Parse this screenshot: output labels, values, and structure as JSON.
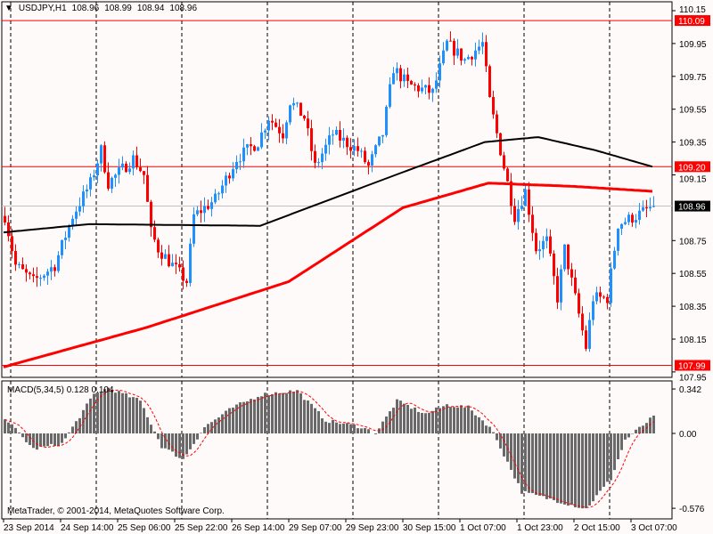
{
  "header": {
    "symbol": "USDJPY,H1",
    "open": "108.96",
    "high": "108.99",
    "low": "108.94",
    "close": "108.96"
  },
  "macd": {
    "label": "MACD(5,34,5)",
    "main": "0.128",
    "signal": "0.104",
    "scale": [
      "0.342",
      "0.00",
      "-0.576"
    ],
    "hist_keypoints": [
      [
        0,
        0.12
      ],
      [
        8,
        -0.12
      ],
      [
        16,
        -0.08
      ],
      [
        25,
        0.3
      ],
      [
        29,
        0.35
      ],
      [
        38,
        0.25
      ],
      [
        44,
        -0.1
      ],
      [
        50,
        -0.2
      ],
      [
        56,
        0.05
      ],
      [
        64,
        0.2
      ],
      [
        72,
        0.3
      ],
      [
        82,
        0.33
      ],
      [
        90,
        0.1
      ],
      [
        100,
        0.05
      ],
      [
        104,
        0
      ],
      [
        110,
        0.25
      ],
      [
        118,
        0.15
      ],
      [
        124,
        0.22
      ],
      [
        130,
        0.2
      ],
      [
        136,
        0.05
      ],
      [
        138,
        -0.05
      ],
      [
        145,
        -0.45
      ],
      [
        155,
        -0.52
      ],
      [
        163,
        -0.58
      ],
      [
        170,
        -0.35
      ],
      [
        174,
        -0.05
      ],
      [
        182,
        0.13
      ]
    ]
  },
  "copyright": "MetaTrader, © 2001-2014, MetaQuotes Software Corp.",
  "price_axis": [
    "110.15",
    "109.95",
    "109.75",
    "109.55",
    "109.35",
    "109.15",
    "108.75",
    "108.55",
    "108.35",
    "108.15",
    "107.95"
  ],
  "levels": [
    {
      "price": "110.09",
      "color": "#ff0000"
    },
    {
      "price": "109.20",
      "color": "#ff0000"
    },
    {
      "price": "108.96",
      "color": "#000000"
    },
    {
      "price": "107.99",
      "color": "#ff0000"
    }
  ],
  "time_axis": [
    "23 Sep 2014",
    "24 Sep 14:00",
    "25 Sep 06:00",
    "25 Sep 22:00",
    "26 Sep 14:00",
    "29 Sep 07:00",
    "29 Sep 23:00",
    "30 Sep 15:00",
    "1 Oct 07:00",
    "1 Oct 23:00",
    "2 Oct 15:00",
    "3 Oct 07:00"
  ],
  "colors": {
    "bull": "#1e90ff",
    "bear": "#ff0000",
    "ma_slow": "#000000",
    "ma_red": "#ff0000",
    "hist": "#696969"
  },
  "chart_data": {
    "type": "candlestick",
    "bars": 183,
    "close_keypoints": [
      [
        0,
        108.9
      ],
      [
        3,
        108.6
      ],
      [
        8,
        108.5
      ],
      [
        14,
        108.6
      ],
      [
        19,
        108.9
      ],
      [
        24,
        109.1
      ],
      [
        27,
        109.3
      ],
      [
        29,
        109.1
      ],
      [
        36,
        109.25
      ],
      [
        39,
        109.15
      ],
      [
        41,
        108.8
      ],
      [
        43,
        108.7
      ],
      [
        47,
        108.6
      ],
      [
        51,
        108.5
      ],
      [
        53,
        108.9
      ],
      [
        59,
        109.0
      ],
      [
        65,
        109.25
      ],
      [
        71,
        109.35
      ],
      [
        74,
        109.5
      ],
      [
        78,
        109.4
      ],
      [
        80,
        109.6
      ],
      [
        84,
        109.5
      ],
      [
        87,
        109.2
      ],
      [
        92,
        109.4
      ],
      [
        99,
        109.3
      ],
      [
        102,
        109.2
      ],
      [
        106,
        109.4
      ],
      [
        109,
        109.8
      ],
      [
        113,
        109.7
      ],
      [
        120,
        109.65
      ],
      [
        124,
        109.95
      ],
      [
        129,
        109.85
      ],
      [
        134,
        109.95
      ],
      [
        136,
        109.6
      ],
      [
        138,
        109.4
      ],
      [
        141,
        109.1
      ],
      [
        143,
        108.9
      ],
      [
        146,
        109.05
      ],
      [
        149,
        108.7
      ],
      [
        152,
        108.75
      ],
      [
        155,
        108.4
      ],
      [
        157,
        108.7
      ],
      [
        161,
        108.3
      ],
      [
        163,
        108.1
      ],
      [
        165,
        108.4
      ],
      [
        169,
        108.4
      ],
      [
        172,
        108.85
      ],
      [
        177,
        108.9
      ],
      [
        182,
        108.96
      ]
    ],
    "ma_black_keypoints": [
      [
        0,
        108.8
      ],
      [
        24,
        108.85
      ],
      [
        72,
        108.84
      ],
      [
        110,
        109.15
      ],
      [
        135,
        109.35
      ],
      [
        150,
        109.38
      ],
      [
        166,
        109.3
      ],
      [
        182,
        109.2
      ]
    ],
    "ma_red_keypoints": [
      [
        0,
        107.98
      ],
      [
        40,
        108.22
      ],
      [
        80,
        108.5
      ],
      [
        112,
        108.95
      ],
      [
        136,
        109.1
      ],
      [
        160,
        109.08
      ],
      [
        182,
        109.05
      ]
    ],
    "ylim": [
      107.95,
      110.15
    ]
  }
}
